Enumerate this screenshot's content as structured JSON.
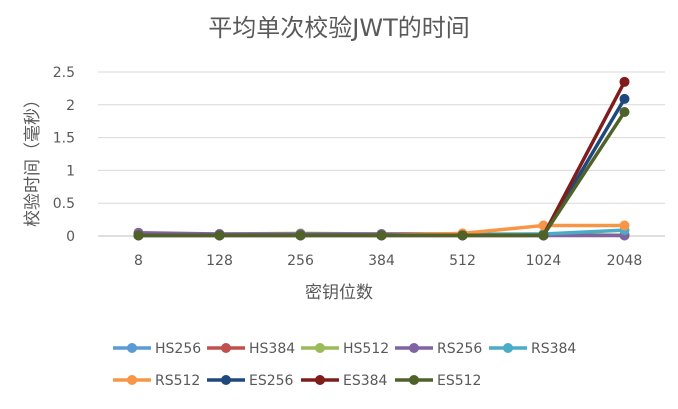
{
  "chart_data": {
    "type": "line",
    "title": "平均单次校验JWT的时间",
    "xlabel": "密钥位数",
    "ylabel": "校验时间（毫秒）",
    "categories": [
      "8",
      "128",
      "256",
      "384",
      "512",
      "1024",
      "2048"
    ],
    "yticks": [
      "0",
      "0.5",
      "1",
      "1.5",
      "2",
      "2.5"
    ],
    "ylim": [
      0,
      2.5
    ],
    "grid": "horizontal",
    "legend_position": "bottom",
    "series": [
      {
        "name": "HS256",
        "color": "#5B9BD5",
        "values": [
          0.01,
          0.01,
          0.01,
          0.01,
          0.01,
          0.01,
          0.01
        ]
      },
      {
        "name": "HS384",
        "color": "#C0504D",
        "values": [
          0.01,
          0.01,
          0.01,
          0.01,
          0.01,
          0.01,
          0.01
        ]
      },
      {
        "name": "HS512",
        "color": "#9BBB59",
        "values": [
          0.03,
          0.03,
          0.04,
          0.03,
          0.03,
          0.03,
          0.01
        ]
      },
      {
        "name": "RS256",
        "color": "#8064A2",
        "values": [
          0.05,
          0.03,
          0.03,
          0.03,
          0.03,
          0.01,
          0.01
        ]
      },
      {
        "name": "RS384",
        "color": "#4BACC6",
        "values": [
          0.01,
          0.01,
          0.01,
          0.01,
          0.02,
          0.03,
          0.09
        ]
      },
      {
        "name": "RS512",
        "color": "#F79646",
        "values": [
          0.01,
          0.01,
          0.01,
          0.01,
          0.04,
          0.16,
          0.16
        ]
      },
      {
        "name": "ES256",
        "color": "#1F497D",
        "values": [
          0.01,
          0.01,
          0.01,
          0.01,
          0.01,
          0.01,
          2.09
        ]
      },
      {
        "name": "ES384",
        "color": "#7F1D1D",
        "values": [
          0.01,
          0.01,
          0.01,
          0.01,
          0.01,
          0.01,
          2.35
        ]
      },
      {
        "name": "ES512",
        "color": "#4F6228",
        "values": [
          0.01,
          0.01,
          0.01,
          0.01,
          0.01,
          0.01,
          1.89
        ]
      }
    ]
  }
}
